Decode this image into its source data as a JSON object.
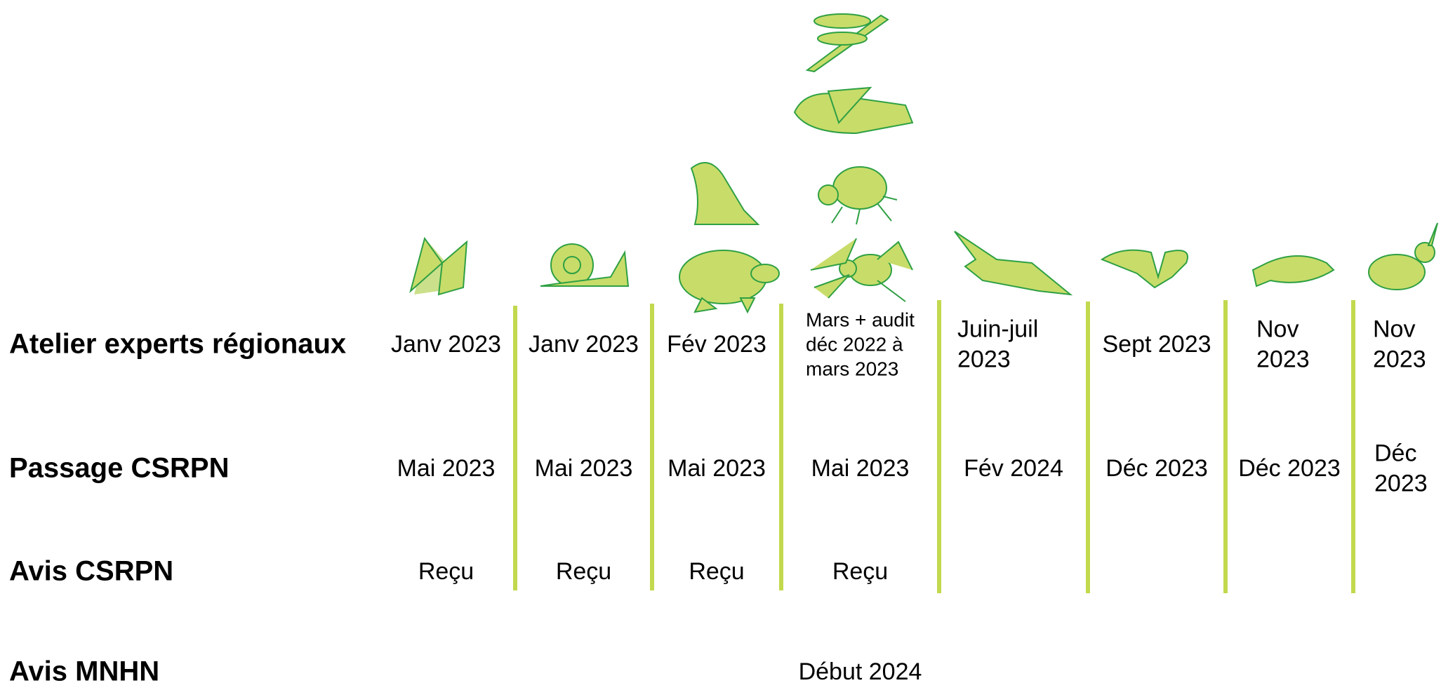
{
  "rows": [
    {
      "label": "Atelier experts régionaux",
      "cells": [
        "Janv 2023",
        "Janv 2023",
        "Fév 2023",
        "Mars + audit déc 2022 à mars 2023",
        "Juin-juil 2023",
        "Sept 2023",
        "Nov 2023",
        "Nov 2023"
      ]
    },
    {
      "label": "Passage CSRPN",
      "cells": [
        "Mai 2023",
        "Mai 2023",
        "Mai 2023",
        "Mai 2023",
        "Fév 2024",
        "Déc 2023",
        "Déc 2023",
        "Déc 2023"
      ]
    },
    {
      "label": "Avis CSRPN",
      "cells": [
        "Reçu",
        "Reçu",
        "Reçu",
        "Reçu",
        null,
        null,
        null,
        null
      ]
    },
    {
      "label": "Avis MNHN",
      "cells": [
        null,
        null,
        null,
        "Début 2024",
        null,
        null,
        null,
        null
      ]
    }
  ]
}
